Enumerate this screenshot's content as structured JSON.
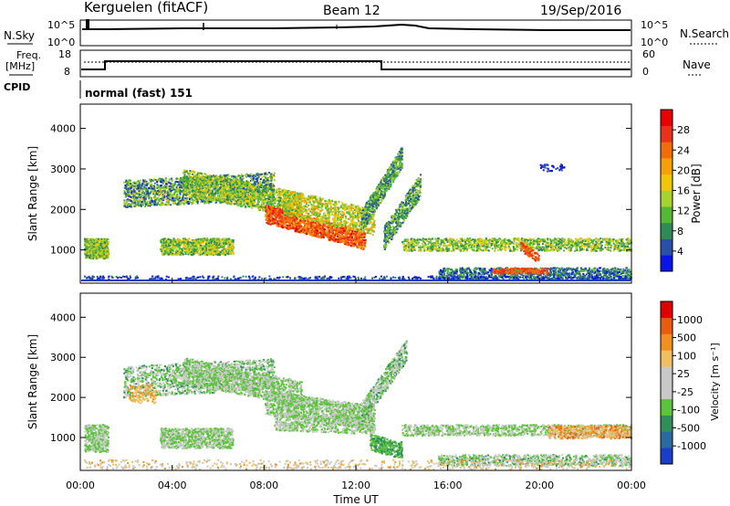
{
  "header": {
    "station": "Kerguelen (fitACF)",
    "beam": "Beam 12",
    "date": "19/Sep/2016"
  },
  "panels": {
    "nsky": {
      "left_label": "N.Sky",
      "right_label": "N.Search",
      "left_ticks": [
        "10^5",
        "10^0"
      ],
      "right_ticks": [
        "10^5",
        "10^0"
      ]
    },
    "freq": {
      "left_label_1": "Freq.",
      "left_label_2": "[MHz]",
      "right_label": "Nave",
      "left_ticks": [
        "18",
        "8"
      ],
      "right_ticks": [
        "60",
        "0"
      ]
    },
    "cpid": {
      "label": "CPID",
      "text": "normal (fast) 151"
    }
  },
  "chart_data": [
    {
      "type": "heatmap",
      "name": "power",
      "ylabel": "Slant Range [km]",
      "ylim": [
        180,
        4600
      ],
      "yticks": [
        "4000",
        "3000",
        "2000",
        "1000"
      ],
      "xlim": [
        0,
        24
      ],
      "colorbar": {
        "label": "Power [dB]",
        "ticks": [
          "28",
          "24",
          "20",
          "16",
          "12",
          "8",
          "4"
        ],
        "colors": [
          "#0a14e6",
          "#2a4fa8",
          "#2f8a55",
          "#54b834",
          "#a8d22e",
          "#f0c60a",
          "#f5a00a",
          "#f26d0a",
          "#e8331a",
          "#e60000"
        ]
      }
    },
    {
      "type": "heatmap",
      "name": "velocity",
      "ylabel": "Slant Range [km]",
      "ylim": [
        180,
        4600
      ],
      "yticks": [
        "4000",
        "3000",
        "2000",
        "1000"
      ],
      "xlim": [
        0,
        24
      ],
      "xticks": [
        "00:00",
        "04:00",
        "08:00",
        "12:00",
        "16:00",
        "20:00",
        "00:00"
      ],
      "xlabel": "Time UT",
      "colorbar": {
        "label": "Velocity [m s⁻¹]",
        "ticks": [
          "1000",
          "500",
          "100",
          "25",
          "-25",
          "-100",
          "-500",
          "-1000"
        ],
        "colors": [
          "#1a3ec8",
          "#2a6aa0",
          "#2f8f5a",
          "#5cc43a",
          "#c8c8c8",
          "#c8c8c8",
          "#f0c060",
          "#f09020",
          "#e85c10",
          "#e00000"
        ]
      }
    }
  ],
  "colors": {
    "freq_line": "#000000",
    "ground_line": "#1a3ec8"
  }
}
